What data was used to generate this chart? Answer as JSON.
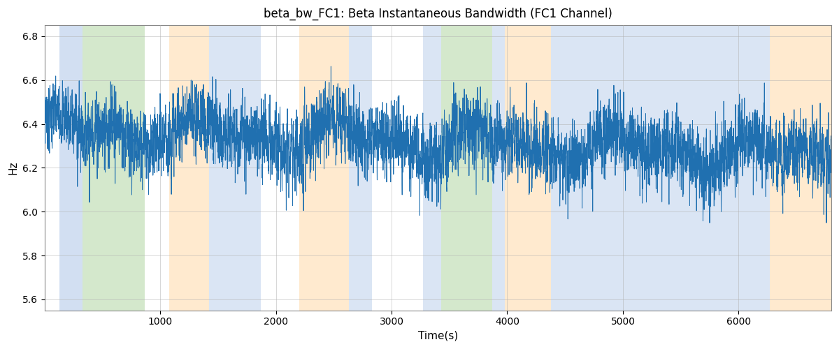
{
  "title": "beta_bw_FC1: Beta Instantaneous Bandwidth (FC1 Channel)",
  "xlabel": "Time(s)",
  "ylabel": "Hz",
  "xlim": [
    0,
    6800
  ],
  "ylim": [
    5.55,
    6.85
  ],
  "yticks": [
    5.6,
    5.8,
    6.0,
    6.2,
    6.4,
    6.6,
    6.8
  ],
  "xticks": [
    1000,
    2000,
    3000,
    4000,
    5000,
    6000
  ],
  "line_color": "#2070b0",
  "line_width": 0.7,
  "background_color": "#ffffff",
  "grid_color": "#b0b0b0",
  "bands": [
    {
      "start": 130,
      "end": 330,
      "color": "#aec6e8",
      "alpha": 0.55
    },
    {
      "start": 330,
      "end": 870,
      "color": "#b2d6a3",
      "alpha": 0.55
    },
    {
      "start": 1080,
      "end": 1420,
      "color": "#ffd9a8",
      "alpha": 0.55
    },
    {
      "start": 1420,
      "end": 1870,
      "color": "#aec6e8",
      "alpha": 0.45
    },
    {
      "start": 2200,
      "end": 2630,
      "color": "#ffd9a8",
      "alpha": 0.55
    },
    {
      "start": 2630,
      "end": 2830,
      "color": "#aec6e8",
      "alpha": 0.45
    },
    {
      "start": 3270,
      "end": 3430,
      "color": "#aec6e8",
      "alpha": 0.45
    },
    {
      "start": 3430,
      "end": 3870,
      "color": "#b2d6a3",
      "alpha": 0.55
    },
    {
      "start": 3870,
      "end": 3980,
      "color": "#aec6e8",
      "alpha": 0.45
    },
    {
      "start": 3980,
      "end": 4380,
      "color": "#ffd9a8",
      "alpha": 0.55
    },
    {
      "start": 4380,
      "end": 4500,
      "color": "#aec6e8",
      "alpha": 0.45
    },
    {
      "start": 4500,
      "end": 6270,
      "color": "#aec6e8",
      "alpha": 0.45
    },
    {
      "start": 6270,
      "end": 6800,
      "color": "#ffd9a8",
      "alpha": 0.55
    }
  ],
  "seed": 7,
  "n_points": 6700,
  "figsize": [
    12.0,
    5.0
  ],
  "dpi": 100
}
